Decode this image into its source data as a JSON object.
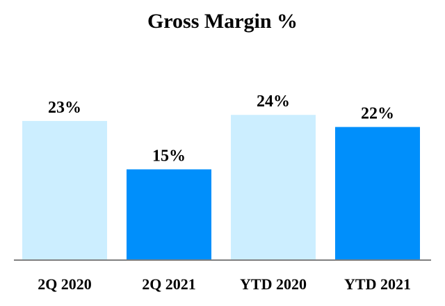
{
  "chart_data": {
    "type": "bar",
    "title": "Gross Margin %",
    "categories": [
      "2Q 2020",
      "2Q 2021",
      "YTD 2020",
      "YTD 2021"
    ],
    "values": [
      23,
      15,
      24,
      22
    ],
    "data_labels": [
      "23%",
      "15%",
      "24%",
      "22%"
    ],
    "unit": "%",
    "bar_colors": [
      "#cceeff",
      "#008ffb",
      "#cceeff",
      "#008ffb"
    ],
    "axis_color": "#7f7f7f",
    "xlabel": "",
    "ylabel": "",
    "ylim": [
      0,
      31.5
    ],
    "grid": false,
    "legend": "none"
  }
}
